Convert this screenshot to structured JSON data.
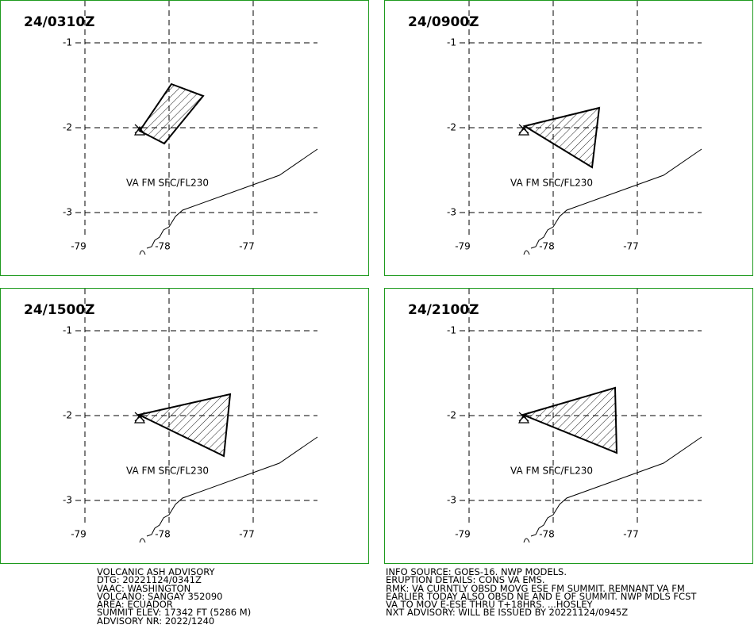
{
  "panels": [
    {
      "title": "24/0310Z",
      "lat_ticks": [
        -1,
        -2,
        -3
      ],
      "lon_ticks": [
        -79,
        -78,
        -77
      ],
      "label": "VA FM SFC/FL230"
    },
    {
      "title": "24/0900Z",
      "lat_ticks": [
        -1,
        -2,
        -3
      ],
      "lon_ticks": [
        -79,
        -78,
        -77
      ],
      "label": "VA FM SFC/FL230"
    },
    {
      "title": "24/1500Z",
      "lat_ticks": [
        -1,
        -2,
        -3
      ],
      "lon_ticks": [
        -79,
        -78,
        -77
      ],
      "label": "VA FM SFC/FL230"
    },
    {
      "title": "24/2100Z",
      "lat_ticks": [
        -1,
        -2,
        -3
      ],
      "lon_ticks": [
        -79,
        -78,
        -77
      ],
      "label": "VA FM SFC/FL230"
    }
  ],
  "advisory": {
    "left": [
      "VOLCANIC ASH ADVISORY",
      "DTG: 20221124/0341Z",
      "VAAC: WASHINGTON",
      "VOLCANO: SANGAY 352090",
      "AREA: ECUADOR",
      "SUMMIT ELEV: 17342 FT (5286 M)",
      "ADVISORY NR: 2022/1240"
    ],
    "right": [
      "INFO SOURCE: GOES-16. NWP MODELS.",
      "ERUPTION DETAILS: CONS VA EMS.",
      "RMK: VA CURNTLY OBSD MOVG ESE FM SUMMIT. REMNANT VA FM",
      "EARLIER TODAY ALSO OBSD NE AND E OF SUMMIT. NWP MDLS FCST",
      "VA TO MOV E-ESE THRU T+18HRS. ...HOSLEY",
      "NXT ADVISORY: WILL BE ISSUED BY 20221124/0945Z"
    ]
  }
}
